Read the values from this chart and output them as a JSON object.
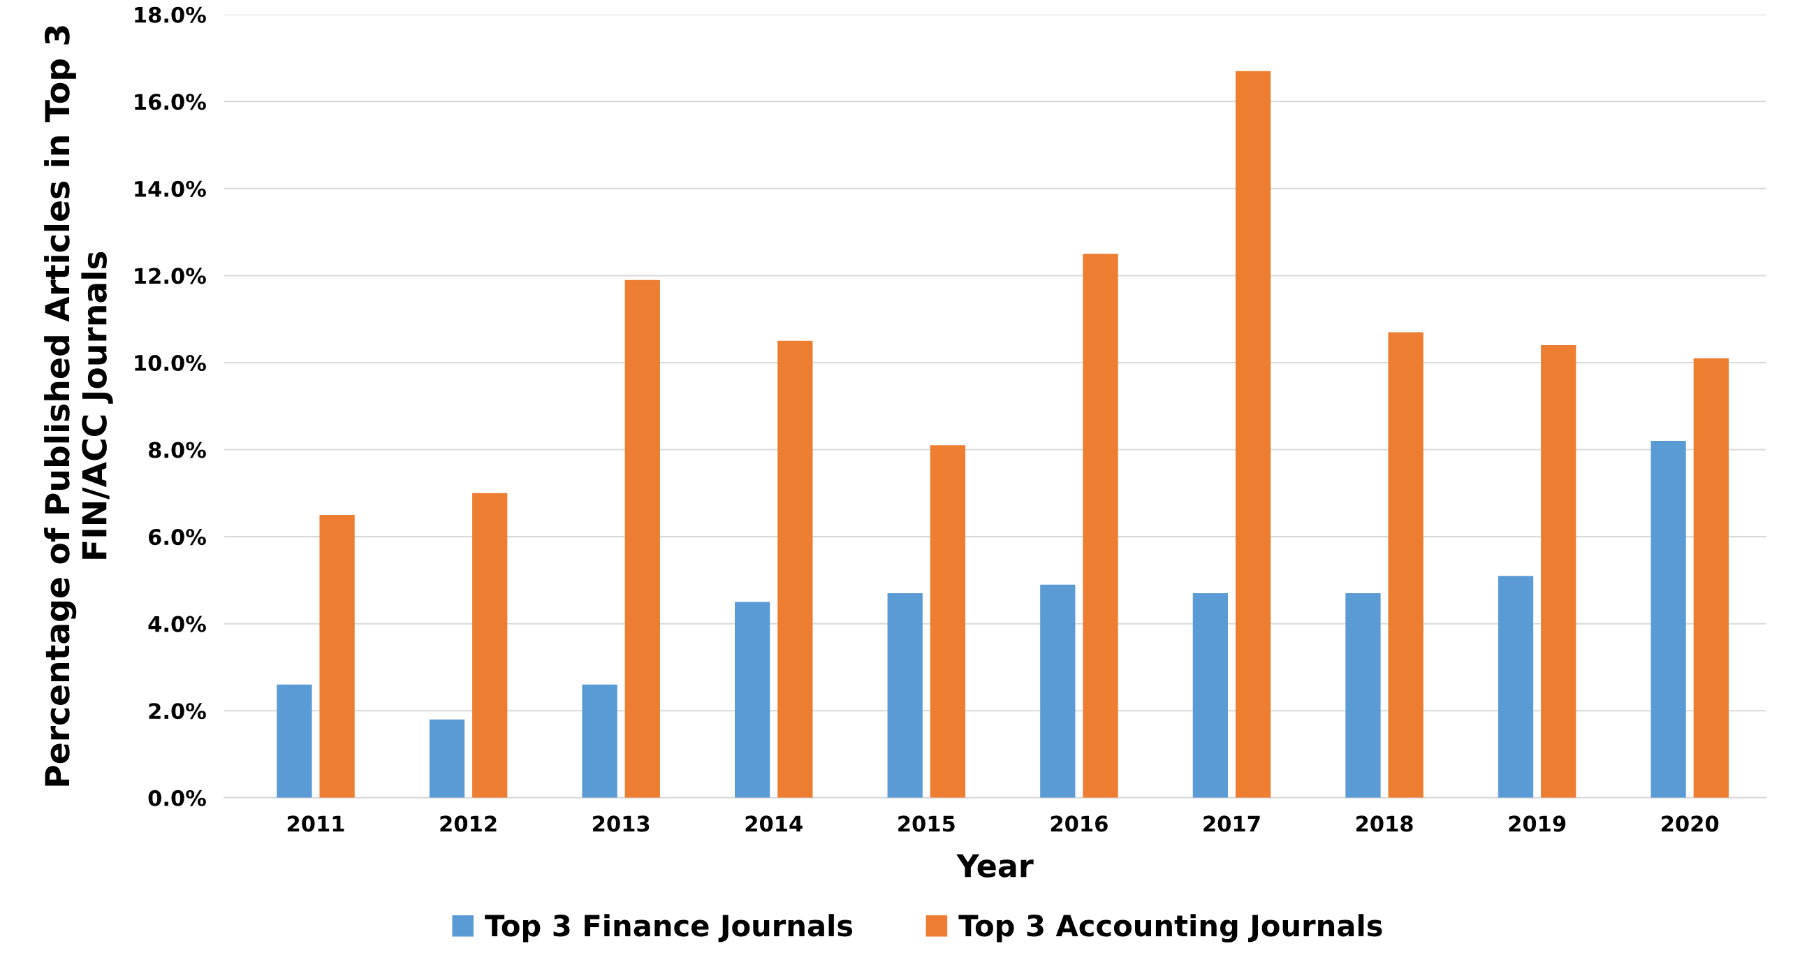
{
  "chart_data": {
    "type": "bar",
    "xlabel": "Year",
    "ylabel": "Percentage of Published Articles in Top 3\nFIN/ACC Journals",
    "categories": [
      "2011",
      "2012",
      "2013",
      "2014",
      "2015",
      "2016",
      "2017",
      "2018",
      "2019",
      "2020"
    ],
    "series": [
      {
        "name": "Top 3 Finance Journals",
        "color": "#5b9bd5",
        "values": [
          2.6,
          1.8,
          2.6,
          4.5,
          4.7,
          4.9,
          4.7,
          4.7,
          5.1,
          8.2
        ]
      },
      {
        "name": "Top 3 Accounting Journals",
        "color": "#ed7d31",
        "values": [
          6.5,
          7.0,
          11.9,
          10.5,
          8.1,
          12.5,
          16.7,
          10.7,
          10.4,
          10.1
        ]
      }
    ],
    "ylim": [
      0,
      18
    ],
    "yticks": [
      {
        "value": 0,
        "label": "0.0%"
      },
      {
        "value": 2,
        "label": "2.0%"
      },
      {
        "value": 4,
        "label": "4.0%"
      },
      {
        "value": 6,
        "label": "6.0%"
      },
      {
        "value": 8,
        "label": "8.0%"
      },
      {
        "value": 10,
        "label": "10.0%"
      },
      {
        "value": 12,
        "label": "12.0%"
      },
      {
        "value": 14,
        "label": "14.0%"
      },
      {
        "value": 16,
        "label": "16.0%"
      },
      {
        "value": 18,
        "label": "18.0%"
      }
    ],
    "grid": "y",
    "legend": "bottom"
  }
}
